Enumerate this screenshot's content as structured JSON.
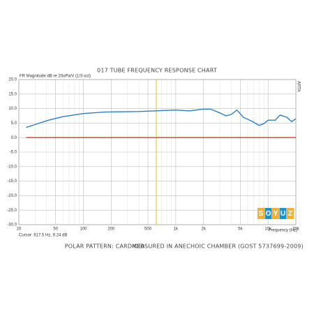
{
  "chart_data": {
    "type": "line",
    "title": "017 TUBE FREQUENCY RESPONSE CHART",
    "y_label": "FR Magnitude dB re 20uPa/V (1/3 oct)",
    "x_label": "Frequency (Hz)",
    "side_label": "ARTA",
    "xscale": "log",
    "xlim": [
      20,
      20000
    ],
    "ylim": [
      -30,
      20
    ],
    "xticks": [
      20,
      50,
      100,
      200,
      500,
      {
        "value": 1000,
        "label": "1k"
      },
      {
        "value": 2000,
        "label": "2k"
      },
      {
        "value": 5000,
        "label": "5k"
      },
      {
        "value": 10000,
        "label": "10k"
      },
      {
        "value": 20000,
        "label": "20k"
      }
    ],
    "xminor_ticks": [
      30,
      40,
      60,
      70,
      80,
      90,
      300,
      400,
      600,
      700,
      800,
      900,
      3000,
      4000,
      6000,
      7000,
      8000,
      9000
    ],
    "yticks": [
      {
        "value": 20,
        "label": "20.0"
      },
      {
        "value": 15,
        "label": "15.0"
      },
      {
        "value": 10,
        "label": "10.0"
      },
      {
        "value": 5,
        "label": "5.0"
      },
      {
        "value": 0,
        "label": "0.0"
      },
      {
        "value": -5,
        "label": "-5.0"
      },
      {
        "value": -10,
        "label": "-10.0"
      },
      {
        "value": -15,
        "label": "-15.0"
      },
      {
        "value": -20,
        "label": "-20.0"
      },
      {
        "value": -25,
        "label": "-25.0"
      },
      {
        "value": -30,
        "label": "-30.0"
      }
    ],
    "grid": true,
    "series": [
      {
        "color": "#2a7fc4",
        "x": [
          24,
          30,
          42,
          60,
          100,
          170,
          400,
          617.5,
          1000,
          1400,
          2000,
          2400,
          3000,
          3500,
          4000,
          4600,
          5400,
          6800,
          8000,
          9000,
          10000,
          12000,
          13500,
          16000,
          18000,
          20000
        ],
        "values": [
          3.5,
          4.5,
          6.0,
          7.2,
          8.3,
          8.8,
          9.0,
          9.24,
          9.5,
          9.2,
          9.8,
          9.8,
          8.5,
          7.5,
          8.0,
          9.5,
          7.0,
          5.5,
          4.2,
          4.8,
          6.0,
          6.0,
          7.8,
          7.0,
          5.5,
          6.5
        ]
      },
      {
        "color": "#d9362b",
        "x": [
          24,
          20000
        ],
        "values": [
          0,
          0
        ]
      }
    ],
    "cursor": {
      "x": 617.5,
      "y": 9.24,
      "color": "#d8cf3a",
      "label": "Cursor: 617.5 Hz, 9.24 dB"
    },
    "footer": [
      "POLAR PATTERN: CARDIOID",
      "MEASURED IN ANECHOIC CHAMBER (GOST 5737699-2009)"
    ]
  },
  "logo": {
    "letters": [
      "S",
      "O",
      "Y",
      "U",
      "Z"
    ]
  }
}
